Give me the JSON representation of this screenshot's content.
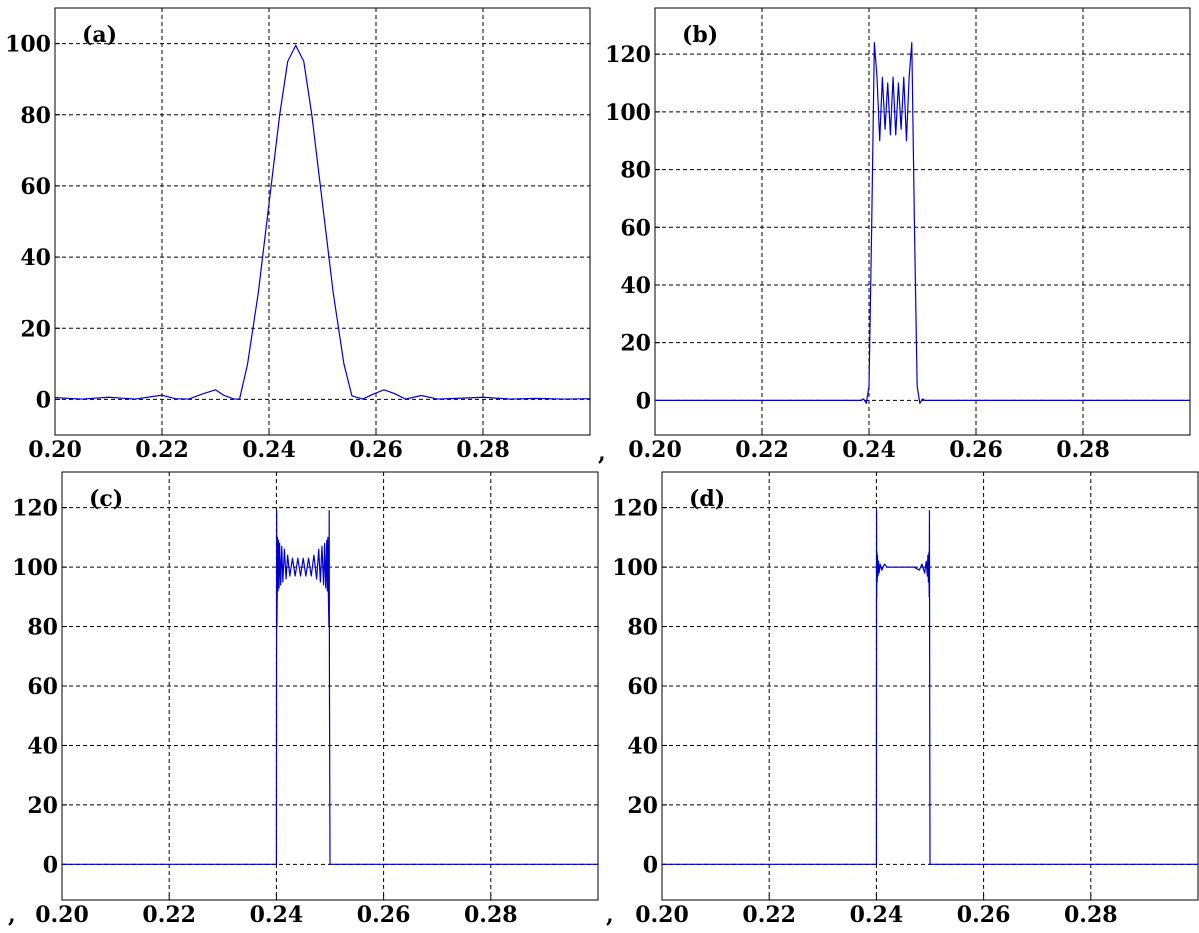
{
  "separators": [
    ",",
    ",",
    ","
  ],
  "chart_data": [
    {
      "type": "line",
      "panel_label": "(a)",
      "xlim": [
        0.2,
        0.3
      ],
      "ylim": [
        -10,
        110
      ],
      "xticks": [
        "0.20",
        "0.22",
        "0.24",
        "0.26",
        "0.28"
      ],
      "yticks": [
        "0",
        "20",
        "40",
        "60",
        "80",
        "100"
      ],
      "grid": true,
      "line_color": "#0000cc",
      "series": [
        {
          "x": [
            0.2,
            0.205,
            0.21,
            0.215,
            0.22,
            0.2225,
            0.225,
            0.2275,
            0.23,
            0.2315,
            0.2335,
            0.2345,
            0.236,
            0.238,
            0.24,
            0.242,
            0.2435,
            0.245,
            0.2465,
            0.248,
            0.25,
            0.252,
            0.254,
            0.2555,
            0.2575,
            0.2595,
            0.2615,
            0.2635,
            0.2655,
            0.2685,
            0.2715,
            0.275,
            0.28,
            0.285,
            0.29,
            0.295,
            0.3
          ],
          "y": [
            0.5,
            0.1,
            0.6,
            0.1,
            1.2,
            0.2,
            0.1,
            1.5,
            2.7,
            1.2,
            0.1,
            0.1,
            10,
            30,
            55,
            80,
            95,
            99.5,
            95,
            80,
            55,
            30,
            10,
            1,
            0.1,
            1.5,
            2.7,
            1.6,
            0.1,
            1.1,
            0.1,
            0.3,
            0.6,
            0.1,
            0.3,
            0.1,
            0.2
          ]
        }
      ]
    },
    {
      "type": "line",
      "panel_label": "(b)",
      "xlim": [
        0.2,
        0.3
      ],
      "ylim": [
        -12,
        136
      ],
      "xticks": [
        "0.20",
        "0.22",
        "0.24",
        "0.26",
        "0.28"
      ],
      "yticks": [
        "0",
        "20",
        "40",
        "60",
        "80",
        "100",
        "120"
      ],
      "grid": true,
      "line_color": "#0000cc",
      "series": [
        {
          "x": [
            0.2,
            0.23,
            0.2385,
            0.239,
            0.2395,
            0.24,
            0.2405,
            0.241,
            0.2415,
            0.242,
            0.2425,
            0.243,
            0.2435,
            0.244,
            0.2445,
            0.245,
            0.2455,
            0.246,
            0.2465,
            0.247,
            0.2475,
            0.248,
            0.2485,
            0.249,
            0.2495,
            0.25,
            0.2505,
            0.251,
            0.2515,
            0.252,
            0.3
          ],
          "y": [
            0,
            0,
            0,
            0.5,
            -1,
            5,
            60,
            124,
            112,
            90,
            112,
            94,
            110,
            92,
            112,
            92,
            110,
            94,
            112,
            90,
            112,
            124,
            60,
            5,
            -1,
            0.5,
            0,
            0,
            0,
            0,
            0
          ]
        }
      ]
    },
    {
      "type": "line",
      "panel_label": "(c)",
      "xlim": [
        0.2,
        0.3
      ],
      "ylim": [
        -12,
        132
      ],
      "xticks": [
        "0.20",
        "0.22",
        "0.24",
        "0.26",
        "0.28"
      ],
      "yticks": [
        "0",
        "20",
        "40",
        "60",
        "80",
        "100",
        "120"
      ],
      "grid": true,
      "line_color": "#0000cc",
      "series": [
        {
          "x": [
            0.2,
            0.2399,
            0.24,
            0.24005,
            0.2401,
            0.24015,
            0.2402,
            0.2403,
            0.2404,
            0.2405,
            0.2406,
            0.2408,
            0.241,
            0.2412,
            0.2415,
            0.2418,
            0.2421,
            0.2425,
            0.243,
            0.2435,
            0.244,
            0.2445,
            0.245,
            0.2455,
            0.246,
            0.2465,
            0.247,
            0.2475,
            0.2479,
            0.2482,
            0.2485,
            0.2488,
            0.249,
            0.2492,
            0.2494,
            0.2495,
            0.2496,
            0.2497,
            0.2498,
            0.24985,
            0.2499,
            0.24995,
            0.25,
            0.2501,
            0.3
          ],
          "y": [
            0,
            0,
            0,
            119,
            80,
            90,
            110,
            92,
            109,
            93,
            108,
            94,
            107,
            95,
            106,
            96,
            104,
            97,
            103,
            97,
            103,
            97,
            103,
            97,
            103,
            97,
            104,
            96,
            106,
            95,
            107,
            94,
            108,
            93,
            109,
            92,
            110,
            90,
            80,
            119,
            60,
            30,
            0,
            0,
            0
          ]
        }
      ]
    },
    {
      "type": "line",
      "panel_label": "(d)",
      "xlim": [
        0.2,
        0.3
      ],
      "ylim": [
        -12,
        132
      ],
      "xticks": [
        "0.20",
        "0.22",
        "0.24",
        "0.26",
        "0.28"
      ],
      "yticks": [
        "0",
        "20",
        "40",
        "60",
        "80",
        "100",
        "120"
      ],
      "grid": true,
      "line_color": "#0000cc",
      "series": [
        {
          "x": [
            0.2,
            0.2399,
            0.24,
            0.24003,
            0.24006,
            0.2401,
            0.24015,
            0.2402,
            0.2403,
            0.2404,
            0.2405,
            0.2407,
            0.241,
            0.2415,
            0.242,
            0.243,
            0.244,
            0.245,
            0.246,
            0.247,
            0.248,
            0.2485,
            0.249,
            0.2493,
            0.2495,
            0.2496,
            0.2497,
            0.2498,
            0.24985,
            0.2499,
            0.24994,
            0.24997,
            0.25,
            0.2501,
            0.3
          ],
          "y": [
            0,
            0,
            0,
            119,
            90,
            105,
            95,
            104,
            97,
            102,
            98,
            101,
            99,
            101,
            100,
            100,
            100,
            100,
            100,
            100,
            99,
            101,
            98,
            102,
            97,
            104,
            95,
            105,
            90,
            119,
            60,
            30,
            0,
            0,
            0
          ]
        }
      ]
    }
  ]
}
